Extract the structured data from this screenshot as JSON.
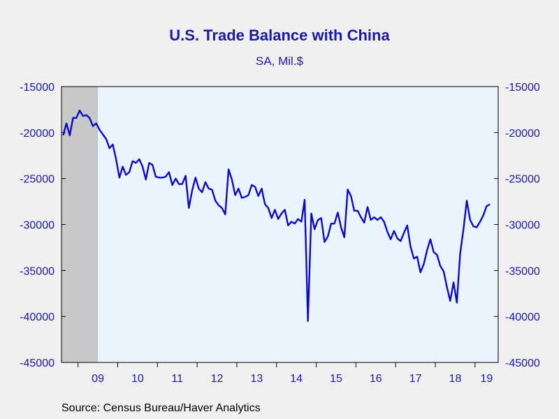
{
  "title": "U.S. Trade Balance with China",
  "subtitle": "SA, Mil.$",
  "source": "Source:  Census Bureau/Haver Analytics",
  "colors": {
    "line": "#0a0ac8",
    "axis_text": "#1a1aa6",
    "plot_bg": "#eaf4ff",
    "recession": "#c8c8c8",
    "page_bg": "#f0f0f0"
  },
  "chart_data": {
    "type": "line",
    "title": "U.S. Trade Balance with China",
    "subtitle": "SA, Mil.$",
    "xlabel": "",
    "ylabel": "",
    "ylim": [
      -45000,
      -15000
    ],
    "yticks": [
      -15000,
      -20000,
      -25000,
      -30000,
      -35000,
      -40000,
      -45000
    ],
    "ytick_labels": [
      "-15000",
      "-20000",
      "-25000",
      "-30000",
      "-35000",
      "-40000",
      "-45000"
    ],
    "xtick_labels": [
      "09",
      "10",
      "11",
      "12",
      "13",
      "14",
      "15",
      "16",
      "17",
      "18",
      "19"
    ],
    "x_start": "2008-08",
    "x_end": "2019-07",
    "y_axis_both_sides": true,
    "grid": false,
    "recession_shading": {
      "start": "2008-08",
      "end": "2009-06"
    },
    "series": [
      {
        "values": [
          -20300,
          -19000,
          -20300,
          -18400,
          -18400,
          -17600,
          -18200,
          -18100,
          -18400,
          -19300,
          -19000,
          -19700,
          -20200,
          -20700,
          -21700,
          -21300,
          -22900,
          -24900,
          -23700,
          -24600,
          -24300,
          -23100,
          -23300,
          -22900,
          -23700,
          -25100,
          -23300,
          -23500,
          -24800,
          -24900,
          -24900,
          -24800,
          -24300,
          -25700,
          -25000,
          -25600,
          -25600,
          -24700,
          -28200,
          -26300,
          -24900,
          -26100,
          -26500,
          -25400,
          -26100,
          -26200,
          -27400,
          -27900,
          -28200,
          -28900,
          -24000,
          -25100,
          -26800,
          -26100,
          -27100,
          -27000,
          -26800,
          -25700,
          -25900,
          -26900,
          -26100,
          -27800,
          -28200,
          -29300,
          -28400,
          -29400,
          -28800,
          -28400,
          -30100,
          -29700,
          -29900,
          -29400,
          -29700,
          -27300,
          -40500,
          -28800,
          -30500,
          -29500,
          -29300,
          -31900,
          -31300,
          -29900,
          -29900,
          -28700,
          -30300,
          -31400,
          -26200,
          -26900,
          -28500,
          -28500,
          -29200,
          -29800,
          -28100,
          -29500,
          -29200,
          -29500,
          -29200,
          -29700,
          -30800,
          -31600,
          -30700,
          -31500,
          -31800,
          -30900,
          -30100,
          -32400,
          -33700,
          -33500,
          -35200,
          -34300,
          -32800,
          -31600,
          -33000,
          -33300,
          -34500,
          -35100,
          -36800,
          -38300,
          -36300,
          -38500,
          -33200,
          -30500,
          -27400,
          -29500,
          -30200,
          -30300,
          -29700,
          -29000,
          -28000,
          -27800
        ]
      }
    ]
  }
}
